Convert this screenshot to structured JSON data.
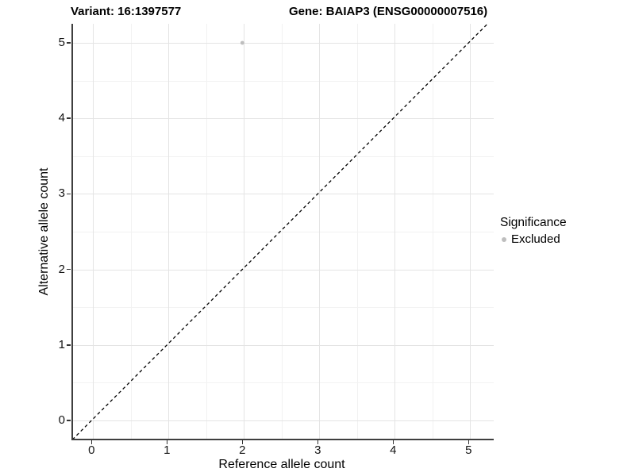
{
  "chart_data": {
    "type": "scatter",
    "title_left": "Variant: 16:1397577",
    "title_right": "Gene: BAIAP3 (ENSG00000007516)",
    "xlabel": "Reference allele count",
    "ylabel": "Alternative allele count",
    "xticks": [
      0,
      1,
      2,
      3,
      4,
      5
    ],
    "yticks": [
      0,
      1,
      2,
      3,
      4,
      5
    ],
    "xlim": [
      -0.26,
      5.26
    ],
    "ylim": [
      -0.25,
      5.25
    ],
    "grid": {
      "major_interval": 1,
      "minor_interval": 0.5,
      "major_color": "#e4e4e4",
      "minor_color": "#f2f2f2"
    },
    "identity_line": {
      "style": "dashed",
      "color": "#000000",
      "slope": 1,
      "intercept": 0
    },
    "series": [
      {
        "name": "Excluded",
        "color": "#bebebe",
        "points": [
          {
            "x": 2,
            "y": 5
          }
        ]
      }
    ],
    "legend": {
      "title": "Significance",
      "position": "right",
      "entries": [
        {
          "label": "Excluded",
          "color": "#bebebe",
          "marker": "circle"
        }
      ]
    }
  },
  "colors": {
    "axis_line": "#3f3f3f",
    "tick_text": "#141414"
  }
}
